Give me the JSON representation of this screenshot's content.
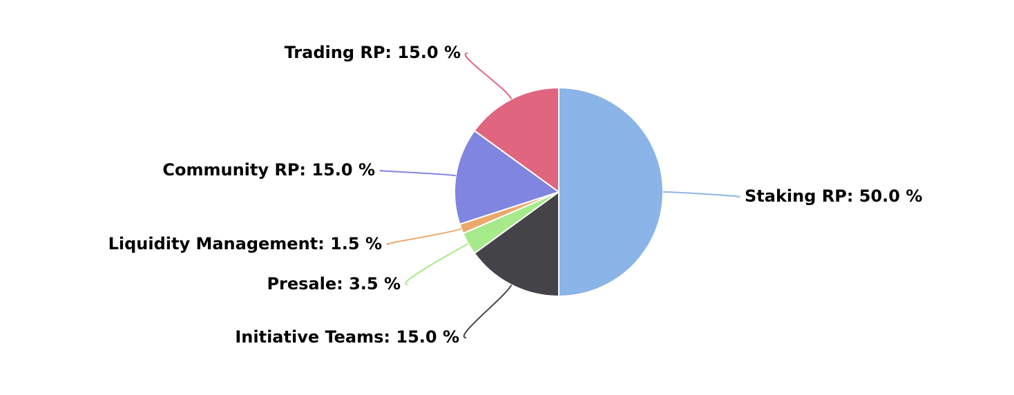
{
  "chart_data": {
    "type": "pie",
    "values": [
      50.0,
      15.0,
      3.5,
      1.5,
      15.0,
      15.0
    ],
    "value_labels": [
      "Staking RP: 50.0 %",
      "Initiative Teams: 15.0 %",
      "Presale: 3.5 %",
      "Liquidity Management: 1.5 %",
      "Community RP: 15.0 %",
      "Trading RP: 15.0 %"
    ],
    "colors": [
      "#8bb4e8",
      "#434348",
      "#a6ea8a",
      "#eaa96c",
      "#8085e0",
      "#e0657f"
    ]
  }
}
